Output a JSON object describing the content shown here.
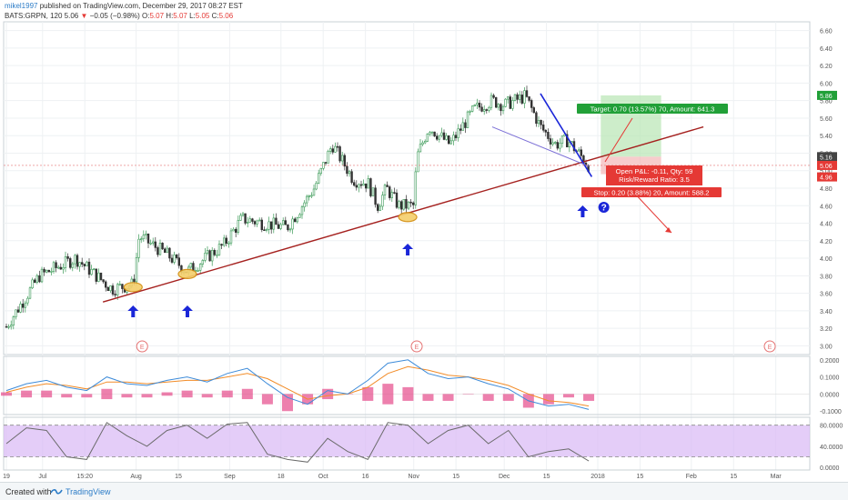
{
  "header": {
    "line1": {
      "username": "mikel1997",
      "text": "published on TradingView.com, December 29, 2017 08:27 EST"
    },
    "line2": {
      "symbol": "BATS:GRPN, 120",
      "last": "5.06",
      "arrow": "▼",
      "change": "−0.05 (−0.98%)",
      "o_label": "O:",
      "o_val": "5.07",
      "h_label": "H:",
      "h_val": "5.07",
      "l_label": "L:",
      "l_val": "5.05",
      "c_label": "C:",
      "c_val": "5.06"
    }
  },
  "footer": {
    "created": "Created with",
    "brand": "TradingView"
  },
  "colors": {
    "up": "#3b9a57",
    "down": "#333333",
    "trendline": "#a5211f",
    "wedge": "#1a26d8",
    "arrow": "#1a26d8",
    "stop": "#e53935",
    "target": "#21a038",
    "rsi_band": "#d9b8f5",
    "hist": "#e64a8a",
    "macd": "#3d8bd9",
    "signal": "#f28c28",
    "ellipse_fill": "#f5cf6b"
  },
  "chart_data": [
    {
      "type": "line",
      "title": "BATS:GRPN, 120",
      "ylim": [
        2.9,
        6.7
      ],
      "y_ticks": [
        "3.00",
        "3.20",
        "3.40",
        "3.60",
        "3.80",
        "4.00",
        "4.20",
        "4.40",
        "4.60",
        "4.80",
        "5.00",
        "5.20",
        "5.40",
        "5.60",
        "5.80",
        "6.00",
        "6.20",
        "6.40",
        "6.60"
      ],
      "x_ticks": [
        "19",
        "Jul",
        "15:20",
        "Aug",
        "15",
        "Sep",
        "18",
        "Oct",
        "16",
        "Nov",
        "15",
        "Dec",
        "15",
        "2018",
        "15",
        "Feb",
        "15",
        "Mar"
      ],
      "price_anchors": {
        "date": [
          "2017-06-19",
          "2017-06-30",
          "2017-07-12",
          "2017-07-24",
          "2017-07-31",
          "2017-08-02",
          "2017-08-11",
          "2017-08-18",
          "2017-08-30",
          "2017-09-05",
          "2017-09-20",
          "2017-09-29",
          "2017-10-05",
          "2017-10-12",
          "2017-10-17",
          "2017-10-20",
          "2017-10-23",
          "2017-10-27",
          "2017-11-01",
          "2017-11-02",
          "2017-11-06",
          "2017-11-13",
          "2017-11-21",
          "2017-11-27",
          "2017-12-01",
          "2017-12-08",
          "2017-12-13",
          "2017-12-18",
          "2017-12-22",
          "2017-12-29"
        ],
        "close": [
          3.22,
          3.8,
          4.0,
          3.65,
          3.7,
          4.25,
          4.05,
          3.85,
          4.15,
          4.45,
          4.35,
          4.8,
          5.3,
          4.9,
          4.85,
          4.6,
          4.8,
          4.6,
          4.6,
          5.15,
          5.5,
          5.3,
          5.7,
          5.8,
          5.75,
          5.85,
          5.5,
          5.3,
          5.35,
          5.06
        ]
      },
      "price_labels": {
        "target": "5.86",
        "current": "5.16",
        "last": "5.06",
        "stop": "4.96"
      },
      "trendline": {
        "start_date": "2017-07-21",
        "start_value": 3.5,
        "end_date": "2018-02-05",
        "end_value": 5.5
      },
      "wedge_upper": {
        "start_date": "2017-12-13",
        "start_value": 5.88,
        "end_date": "2017-12-30",
        "end_value": 4.93
      },
      "wedge_lower": {
        "start_date": "2017-11-27",
        "start_value": 5.5,
        "end_date": "2017-12-29",
        "end_value": 5.05
      },
      "touch_points": [
        {
          "date": "2017-07-31",
          "value": 3.67
        },
        {
          "date": "2017-08-18",
          "value": 3.82
        },
        {
          "date": "2017-10-30",
          "value": 4.47
        }
      ],
      "up_arrows": [
        "2017-07-31",
        "2017-08-18",
        "2017-10-30",
        "2017-12-27"
      ],
      "earnings_markers": [
        "2017-08-03",
        "2017-11-02",
        "2018-02-27"
      ],
      "earnings_label": "E",
      "question_mark": "?",
      "position": {
        "target_label": "Target: 0.70 (13.57%) 70, Amount: 641.3",
        "pnl_label": "Open P&L: -0.11, Qty: 59",
        "rr_label": "Risk/Reward Ratio: 3.5",
        "stop_label": "Stop: 0.20 (3.88%) 20, Amount: 588.2",
        "entry": 5.16,
        "target": 5.86,
        "stop": 4.96,
        "start_date": "2018-01-02",
        "end_date": "2018-01-22"
      }
    },
    {
      "type": "line",
      "title": "",
      "ylim": [
        -0.12,
        0.22
      ],
      "y_ticks": [
        "0.2000",
        "0.1000",
        "0.0000",
        "-0.1000"
      ],
      "series": [
        {
          "values": [
            0.02,
            0.06,
            0.08,
            0.04,
            0.02,
            0.1,
            0.06,
            0.05,
            0.08,
            0.1,
            0.07,
            0.12,
            0.15,
            0.06,
            -0.02,
            -0.06,
            0.02,
            0.0,
            0.08,
            0.18,
            0.2,
            0.12,
            0.09,
            0.1,
            0.06,
            0.03,
            -0.04,
            -0.07,
            -0.06,
            -0.09
          ]
        },
        {
          "values": [
            0.01,
            0.04,
            0.06,
            0.05,
            0.03,
            0.07,
            0.07,
            0.06,
            0.07,
            0.08,
            0.08,
            0.1,
            0.12,
            0.09,
            0.03,
            -0.03,
            -0.01,
            0.0,
            0.04,
            0.12,
            0.16,
            0.14,
            0.11,
            0.1,
            0.08,
            0.05,
            0.0,
            -0.04,
            -0.05,
            -0.07
          ]
        }
      ]
    },
    {
      "type": "line",
      "title": "",
      "ylim": [
        -5,
        95
      ],
      "y_ticks": [
        "80.0000",
        "40.0000",
        "0.0000"
      ],
      "bands": [
        20,
        80
      ],
      "series": [
        {
          "values": [
            45,
            75,
            70,
            20,
            15,
            85,
            60,
            40,
            70,
            80,
            55,
            82,
            85,
            25,
            15,
            10,
            55,
            30,
            15,
            85,
            80,
            45,
            70,
            80,
            45,
            70,
            20,
            30,
            35,
            12
          ]
        }
      ]
    }
  ]
}
